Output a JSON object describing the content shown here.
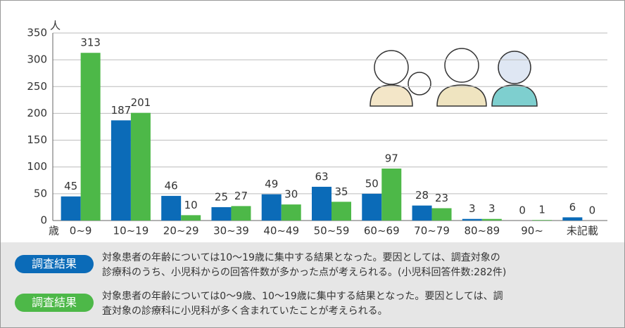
{
  "chart_data": {
    "type": "bar",
    "y_label": "人",
    "x_label": "歳",
    "categories": [
      "0~9",
      "10~19",
      "20~29",
      "30~39",
      "40~49",
      "50~59",
      "60~69",
      "70~79",
      "80~89",
      "90~",
      "未記載"
    ],
    "series": [
      {
        "color": "#0b6bb8",
        "values": [
          45,
          187,
          46,
          25,
          49,
          63,
          50,
          28,
          3,
          0,
          6
        ]
      },
      {
        "color": "#4db848",
        "values": [
          313,
          201,
          10,
          27,
          30,
          35,
          97,
          23,
          3,
          1,
          0
        ]
      }
    ],
    "ylim": [
      0,
      350
    ],
    "yticks": [
      0,
      50,
      100,
      150,
      200,
      250,
      300,
      350
    ],
    "grid": true
  },
  "notes": [
    {
      "label": "調査結果",
      "color": "#0b6bb8",
      "lines": [
        "対象患者の年齢については10～19歳に集中する結果となった。要因としては、調査対象の",
        "診療科のうち、小児科からの回答件数が多かった点が考えられる。(小児科回答件数:282件)"
      ]
    },
    {
      "label": "調査結果",
      "color": "#4db848",
      "lines": [
        "対象患者の年齢については0～9歳、10～19歳に集中する結果となった。要因としては、調",
        "査対象の診療科に小児科が多く含まれていたことが考えられる。"
      ]
    }
  ]
}
